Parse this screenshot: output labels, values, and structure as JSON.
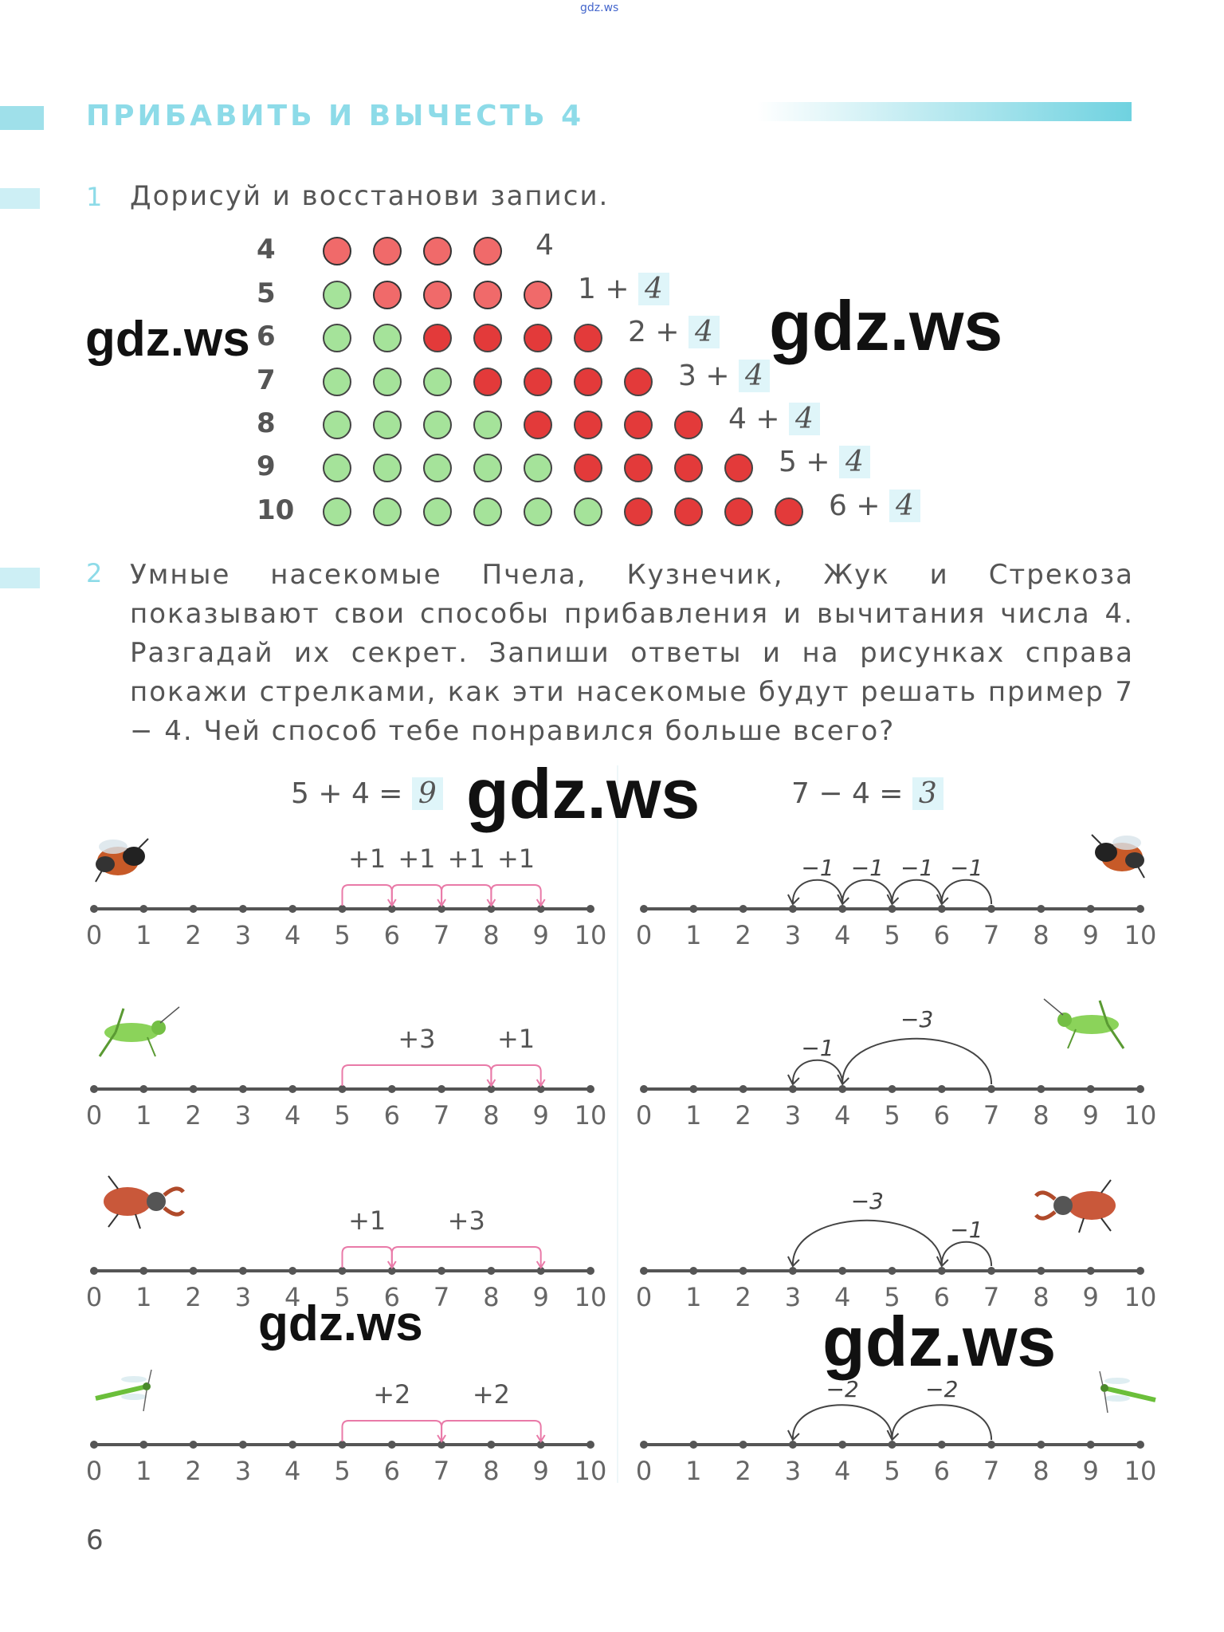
{
  "top_mark": "gdz.ws",
  "section_title": "ПРИБАВИТЬ И ВЫЧЕСТЬ 4",
  "task1": {
    "number": "1",
    "text": "Дорисуй и восстанови записи.",
    "rows": [
      {
        "label": "4",
        "green": 0,
        "red": 4,
        "expr_prefix": "",
        "answer": "4"
      },
      {
        "label": "5",
        "green": 1,
        "red": 4,
        "expr_prefix": "1 +",
        "answer": "4"
      },
      {
        "label": "6",
        "green": 2,
        "red": 4,
        "expr_prefix": "2 +",
        "answer": "4"
      },
      {
        "label": "7",
        "green": 3,
        "red": 4,
        "expr_prefix": "3 +",
        "answer": "4"
      },
      {
        "label": "8",
        "green": 4,
        "red": 4,
        "expr_prefix": "4 +",
        "answer": "4"
      },
      {
        "label": "9",
        "green": 5,
        "red": 4,
        "expr_prefix": "5 +",
        "answer": "4"
      },
      {
        "label": "10",
        "green": 6,
        "red": 4,
        "expr_prefix": "6 +",
        "answer": "4"
      }
    ]
  },
  "task2": {
    "number": "2",
    "text": "Умные насекомые Пчела, Кузнечик, Жук и Стрекоза показывают свои способы прибавления и вычитания числа 4. Разгадай их секрет. Запиши ответы и на рисунках справа покажи стрелками, как эти насекомые будут решать пример 7 − 4. Чей способ тебе понравился больше всего?",
    "left_example": {
      "expr": "5 + 4 =",
      "answer": "9"
    },
    "right_example": {
      "expr": "7 − 4 =",
      "answer": "3"
    },
    "tick_labels": [
      "0",
      "1",
      "2",
      "3",
      "4",
      "5",
      "6",
      "7",
      "8",
      "9",
      "10"
    ],
    "rows": [
      {
        "insect": "bee",
        "left_labels": [
          "+1",
          "+1",
          "+1",
          "+1"
        ],
        "left_arcs": [
          [
            5,
            6
          ],
          [
            6,
            7
          ],
          [
            7,
            8
          ],
          [
            8,
            9
          ]
        ],
        "right_labels": [
          "−1",
          "−1",
          "−1",
          "−1"
        ],
        "right_arcs": [
          [
            7,
            6
          ],
          [
            6,
            5
          ],
          [
            5,
            4
          ],
          [
            4,
            3
          ]
        ]
      },
      {
        "insect": "grasshopper",
        "left_labels": [
          "+3",
          "+1"
        ],
        "left_arcs": [
          [
            5,
            8
          ],
          [
            8,
            9
          ]
        ],
        "right_labels": [
          "−1",
          "−3"
        ],
        "right_arcs": [
          [
            4,
            3
          ],
          [
            7,
            4
          ]
        ]
      },
      {
        "insect": "beetle",
        "left_labels": [
          "+1",
          "+3"
        ],
        "left_arcs": [
          [
            5,
            6
          ],
          [
            6,
            9
          ]
        ],
        "right_labels": [
          "−3",
          "−1"
        ],
        "right_arcs": [
          [
            6,
            3
          ],
          [
            7,
            6
          ]
        ]
      },
      {
        "insect": "dragonfly",
        "left_labels": [
          "+2",
          "+2"
        ],
        "left_arcs": [
          [
            5,
            7
          ],
          [
            7,
            9
          ]
        ],
        "right_labels": [
          "−2",
          "−2"
        ],
        "right_arcs": [
          [
            5,
            3
          ],
          [
            7,
            5
          ]
        ]
      }
    ]
  },
  "page_number": "6",
  "watermarks": [
    "gdz.ws",
    "gdz.ws",
    "gdz.ws",
    "gdz.ws",
    "gdz.ws"
  ],
  "colors": {
    "accent": "#8ddbe8",
    "green_dot": "#a5e39a",
    "red_dot": "#e33a3a",
    "pink_arc": "#e97aa8",
    "pencil": "#444444"
  }
}
